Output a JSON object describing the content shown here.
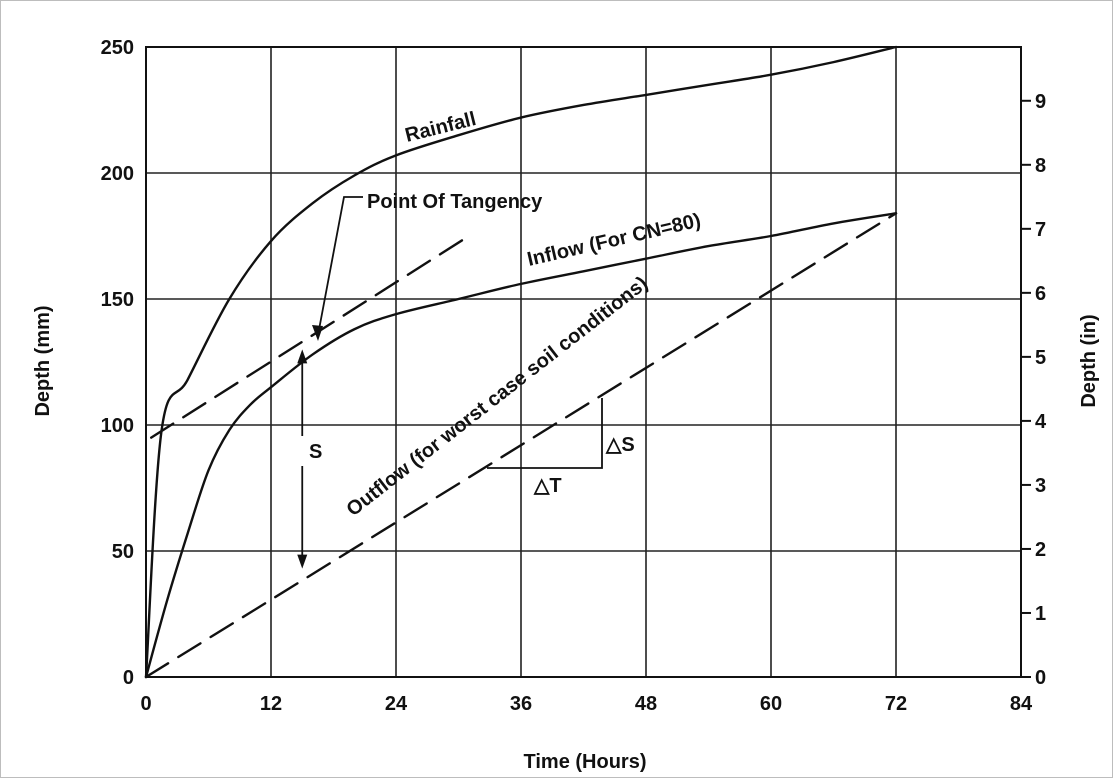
{
  "chart_data": {
    "type": "line",
    "xlabel": "Time (Hours)",
    "ylabel": "Depth (mm)",
    "y2label": "Depth (in)",
    "xlim": [
      0,
      84
    ],
    "ylim": [
      0,
      250
    ],
    "y2lim": [
      0,
      9.84
    ],
    "xticks": [
      0,
      12,
      24,
      36,
      48,
      60,
      72,
      84
    ],
    "yticks": [
      0,
      50,
      100,
      150,
      200,
      250
    ],
    "y2ticks": [
      0,
      1,
      2,
      3,
      4,
      5,
      6,
      7,
      8,
      9
    ],
    "grid": true,
    "series": [
      {
        "name": "Rainfall",
        "style": "solid",
        "x": [
          0,
          1.5,
          4,
          8,
          12,
          16,
          20,
          24,
          30,
          36,
          42,
          48,
          54,
          60,
          66,
          72
        ],
        "y": [
          0,
          98,
          118,
          150,
          173,
          188,
          199,
          207,
          215,
          222,
          227,
          231,
          235,
          239,
          244,
          250
        ]
      },
      {
        "name": "Inflow (For CN=80)",
        "style": "solid",
        "x": [
          0,
          2,
          4,
          6,
          8,
          10,
          12,
          16,
          20,
          24,
          30,
          36,
          42,
          48,
          54,
          60,
          66,
          72
        ],
        "y": [
          0,
          30,
          57,
          82,
          98,
          108,
          115,
          128,
          138,
          144,
          150,
          156,
          161,
          166,
          171,
          175,
          180,
          184
        ]
      },
      {
        "name": "Outflow (for worst case soil conditions)",
        "style": "dashed",
        "x": [
          0,
          72
        ],
        "y": [
          0,
          184
        ]
      },
      {
        "name": "Point Of Tangency",
        "style": "dashed",
        "x": [
          0.5,
          31
        ],
        "y": [
          95,
          175
        ]
      }
    ],
    "annotations": [
      "Rainfall",
      "Point Of Tangency",
      "Inflow (For CN=80)",
      "Outflow (for worst case soil conditions)",
      "S",
      "△S",
      "△T"
    ]
  }
}
